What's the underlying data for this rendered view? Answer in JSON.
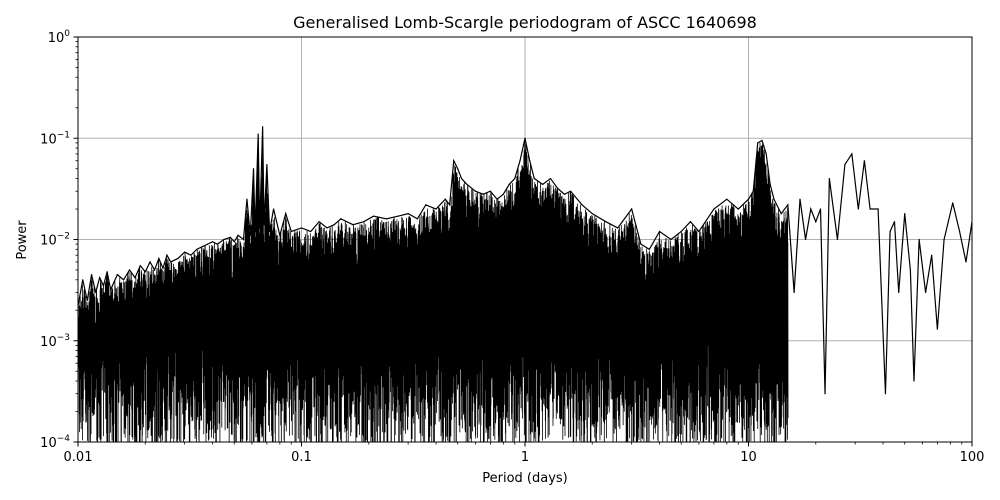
{
  "chart_data": {
    "type": "line",
    "title": "Generalised Lomb-Scargle periodogram of ASCC 1640698",
    "xlabel": "Period (days)",
    "ylabel": "Power",
    "xscale": "log",
    "yscale": "log",
    "xlim": [
      0.01,
      100
    ],
    "ylim": [
      0.0001,
      1
    ],
    "grid": true,
    "x_ticks": [
      {
        "value": 0.01,
        "label": "0.01"
      },
      {
        "value": 0.1,
        "label": "0.1"
      },
      {
        "value": 1,
        "label": "1"
      },
      {
        "value": 10,
        "label": "10"
      },
      {
        "value": 100,
        "label": "100"
      }
    ],
    "y_ticks": [
      {
        "value": 0.0001,
        "base": "10",
        "exp": "−4"
      },
      {
        "value": 0.001,
        "base": "10",
        "exp": "−3"
      },
      {
        "value": 0.01,
        "base": "10",
        "exp": "−2"
      },
      {
        "value": 0.1,
        "base": "10",
        "exp": "−1"
      },
      {
        "value": 1,
        "base": "10",
        "exp": "0"
      }
    ],
    "line_color": "#000000",
    "grid_color": "#b0b0b0",
    "series": [
      {
        "points": [
          [
            0.01,
            0.0022
          ],
          [
            0.0105,
            0.004
          ],
          [
            0.011,
            0.0025
          ],
          [
            0.0115,
            0.0045
          ],
          [
            0.012,
            0.003
          ],
          [
            0.0125,
            0.0042
          ],
          [
            0.013,
            0.0035
          ],
          [
            0.0135,
            0.0048
          ],
          [
            0.014,
            0.0032
          ],
          [
            0.015,
            0.0045
          ],
          [
            0.016,
            0.004
          ],
          [
            0.017,
            0.005
          ],
          [
            0.018,
            0.0042
          ],
          [
            0.019,
            0.0055
          ],
          [
            0.02,
            0.0048
          ],
          [
            0.021,
            0.006
          ],
          [
            0.022,
            0.005
          ],
          [
            0.023,
            0.0065
          ],
          [
            0.024,
            0.0052
          ],
          [
            0.025,
            0.007
          ],
          [
            0.026,
            0.006
          ],
          [
            0.028,
            0.0065
          ],
          [
            0.03,
            0.0075
          ],
          [
            0.032,
            0.007
          ],
          [
            0.034,
            0.008
          ],
          [
            0.036,
            0.0085
          ],
          [
            0.038,
            0.009
          ],
          [
            0.04,
            0.0095
          ],
          [
            0.042,
            0.009
          ],
          [
            0.045,
            0.01
          ],
          [
            0.048,
            0.0105
          ],
          [
            0.05,
            0.0095
          ],
          [
            0.052,
            0.011
          ],
          [
            0.055,
            0.01
          ],
          [
            0.057,
            0.025
          ],
          [
            0.059,
            0.011
          ],
          [
            0.061,
            0.05
          ],
          [
            0.062,
            0.012
          ],
          [
            0.064,
            0.11
          ],
          [
            0.065,
            0.013
          ],
          [
            0.067,
            0.13
          ],
          [
            0.068,
            0.014
          ],
          [
            0.07,
            0.055
          ],
          [
            0.072,
            0.012
          ],
          [
            0.075,
            0.02
          ],
          [
            0.08,
            0.011
          ],
          [
            0.085,
            0.018
          ],
          [
            0.09,
            0.012
          ],
          [
            0.1,
            0.013
          ],
          [
            0.11,
            0.012
          ],
          [
            0.12,
            0.015
          ],
          [
            0.13,
            0.013
          ],
          [
            0.14,
            0.014
          ],
          [
            0.15,
            0.016
          ],
          [
            0.17,
            0.014
          ],
          [
            0.19,
            0.015
          ],
          [
            0.21,
            0.017
          ],
          [
            0.24,
            0.016
          ],
          [
            0.27,
            0.017
          ],
          [
            0.3,
            0.018
          ],
          [
            0.33,
            0.016
          ],
          [
            0.36,
            0.022
          ],
          [
            0.4,
            0.02
          ],
          [
            0.44,
            0.025
          ],
          [
            0.46,
            0.022
          ],
          [
            0.48,
            0.06
          ],
          [
            0.5,
            0.05
          ],
          [
            0.52,
            0.04
          ],
          [
            0.55,
            0.035
          ],
          [
            0.6,
            0.03
          ],
          [
            0.65,
            0.028
          ],
          [
            0.7,
            0.03
          ],
          [
            0.75,
            0.025
          ],
          [
            0.8,
            0.028
          ],
          [
            0.85,
            0.035
          ],
          [
            0.9,
            0.04
          ],
          [
            0.95,
            0.06
          ],
          [
            1.0,
            0.1
          ],
          [
            1.05,
            0.06
          ],
          [
            1.1,
            0.04
          ],
          [
            1.2,
            0.035
          ],
          [
            1.3,
            0.04
          ],
          [
            1.4,
            0.032
          ],
          [
            1.5,
            0.028
          ],
          [
            1.6,
            0.03
          ],
          [
            1.8,
            0.022
          ],
          [
            2.0,
            0.018
          ],
          [
            2.3,
            0.015
          ],
          [
            2.6,
            0.013
          ],
          [
            3.0,
            0.02
          ],
          [
            3.3,
            0.009
          ],
          [
            3.6,
            0.008
          ],
          [
            4.0,
            0.012
          ],
          [
            4.5,
            0.01
          ],
          [
            5.0,
            0.012
          ],
          [
            5.5,
            0.015
          ],
          [
            6.0,
            0.012
          ],
          [
            7.0,
            0.02
          ],
          [
            8.0,
            0.025
          ],
          [
            9.0,
            0.02
          ],
          [
            10.0,
            0.025
          ],
          [
            10.5,
            0.03
          ],
          [
            11.0,
            0.09
          ],
          [
            11.5,
            0.095
          ],
          [
            12.0,
            0.07
          ],
          [
            12.5,
            0.035
          ],
          [
            13.0,
            0.025
          ],
          [
            14.0,
            0.018
          ],
          [
            15.0,
            0.022
          ],
          [
            16.0,
            0.003
          ],
          [
            17.0,
            0.025
          ],
          [
            18.0,
            0.01
          ],
          [
            19.0,
            0.02
          ],
          [
            20.0,
            0.015
          ],
          [
            21.0,
            0.02
          ],
          [
            22.0,
            0.0003
          ],
          [
            23.0,
            0.04
          ],
          [
            25.0,
            0.01
          ],
          [
            27.0,
            0.055
          ],
          [
            29.0,
            0.07
          ],
          [
            31.0,
            0.02
          ],
          [
            33.0,
            0.06
          ],
          [
            35.0,
            0.02
          ],
          [
            38.0,
            0.02
          ],
          [
            41.0,
            0.0003
          ],
          [
            43.0,
            0.012
          ],
          [
            45.0,
            0.015
          ],
          [
            47.0,
            0.003
          ],
          [
            50.0,
            0.018
          ],
          [
            53.0,
            0.005
          ],
          [
            55.0,
            0.0004
          ],
          [
            58.0,
            0.01
          ],
          [
            62.0,
            0.003
          ],
          [
            66.0,
            0.007
          ],
          [
            70.0,
            0.0013
          ],
          [
            75.0,
            0.01
          ],
          [
            82.0,
            0.023
          ],
          [
            88.0,
            0.012
          ],
          [
            94.0,
            0.006
          ],
          [
            100.0,
            0.015
          ]
        ]
      }
    ]
  }
}
